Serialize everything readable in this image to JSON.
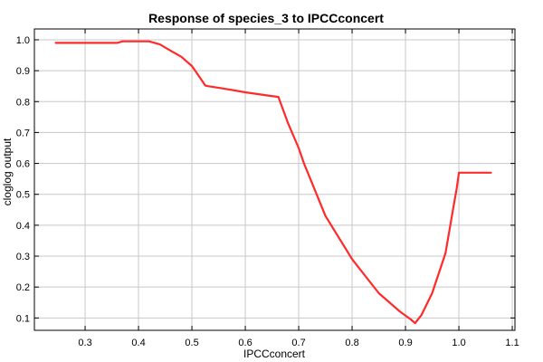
{
  "chart_data": {
    "type": "line",
    "title": "Response of species_3 to IPCCconcert",
    "xlabel": "IPCCconcert",
    "ylabel": "cloglog output",
    "xlim": [
      0.205,
      1.105
    ],
    "ylim": [
      0.06,
      1.035
    ],
    "x_ticks": [
      0.3,
      0.4,
      0.5,
      0.6,
      0.7,
      0.8,
      0.9,
      1.0,
      1.1
    ],
    "x_tick_labels": [
      "0.3",
      "0.4",
      "0.5",
      "0.6",
      "0.7",
      "0.8",
      "0.9",
      "1.0",
      "1.1"
    ],
    "y_ticks": [
      0.1,
      0.2,
      0.3,
      0.4,
      0.5,
      0.6,
      0.7,
      0.8,
      0.9,
      1.0
    ],
    "y_tick_labels": [
      "0.1",
      "0.2",
      "0.3",
      "0.4",
      "0.5",
      "0.6",
      "0.7",
      "0.8",
      "0.9",
      "1.0"
    ],
    "grid": true,
    "line_color": "#ff2a2a",
    "series": [
      {
        "x": [
          0.245,
          0.3,
          0.36,
          0.37,
          0.42,
          0.44,
          0.46,
          0.48,
          0.5,
          0.51,
          0.52,
          0.525,
          0.53,
          0.56,
          0.6,
          0.64,
          0.662,
          0.68,
          0.7,
          0.71,
          0.75,
          0.8,
          0.85,
          0.89,
          0.91,
          0.918,
          0.93,
          0.95,
          0.975,
          0.99,
          0.996,
          1.0,
          1.06
        ],
        "y": [
          0.99,
          0.99,
          0.99,
          0.995,
          0.995,
          0.985,
          0.965,
          0.945,
          0.915,
          0.89,
          0.865,
          0.852,
          0.85,
          0.842,
          0.83,
          0.82,
          0.815,
          0.73,
          0.65,
          0.6,
          0.43,
          0.29,
          0.18,
          0.12,
          0.095,
          0.083,
          0.11,
          0.18,
          0.31,
          0.46,
          0.52,
          0.57,
          0.57
        ]
      }
    ]
  }
}
